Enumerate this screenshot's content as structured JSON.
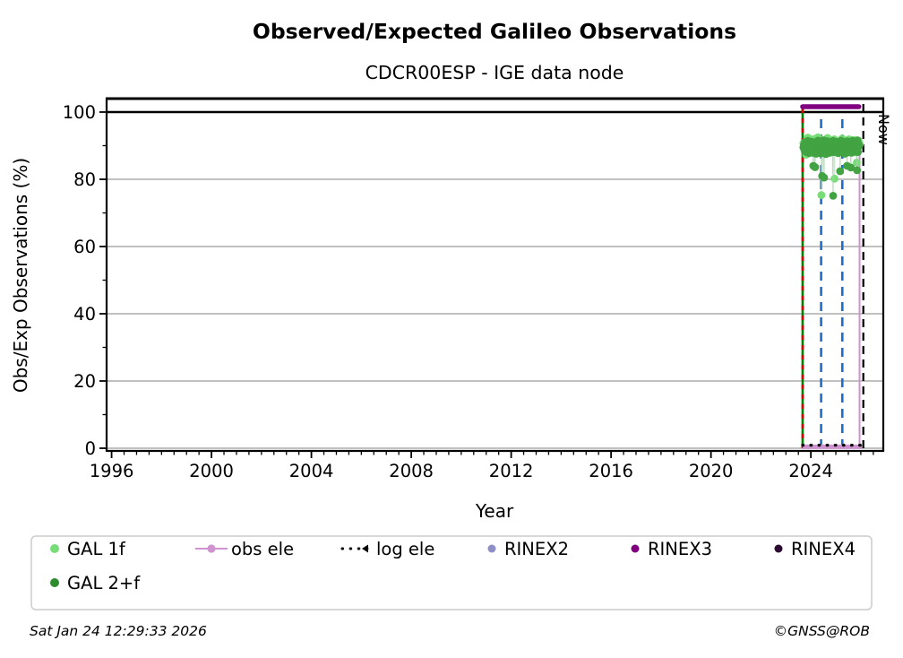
{
  "title": "Observed/Expected Galileo Observations",
  "subtitle": "CDCR00ESP - IGE data node",
  "now_label": "Now",
  "footer": {
    "timestamp": "Sat Jan 24 12:29:33 2026",
    "credit": "©GNSS@ROB"
  },
  "colors": {
    "gal1f": "#77dd77",
    "gal1f_line": "#bfe9bf",
    "gal2f": "#41a341",
    "gal2f_legend": "#2e8b2e",
    "gal2f_line": "#a3d6a8",
    "obs_ele": "#cf94cf",
    "log_ele": "#000000",
    "rinex2": "#8e8ec8",
    "rinex3": "#800080",
    "rinex4": "#2d0a32",
    "event_blue": "#1e6ec8",
    "data_start_green": "#008000",
    "data_start_red": "#e00000",
    "grid_gray": "#b8b8b8",
    "hline100": "#000000"
  },
  "chart_data": {
    "type": "scatter",
    "title": "Observed/Expected Galileo Observations",
    "subtitle": "CDCR00ESP - IGE data node",
    "xlabel": "Year",
    "ylabel": "Obs/Exp Observations (%)",
    "xlim": [
      1995.8,
      2026.9
    ],
    "ylim": [
      -0.8,
      104
    ],
    "xticks_major": [
      1996,
      2000,
      2004,
      2008,
      2012,
      2016,
      2020,
      2024
    ],
    "xtick_minor_step": 0.5,
    "yticks_major": [
      0,
      20,
      40,
      60,
      80,
      100
    ],
    "yticks_minor": [
      10,
      30,
      50,
      70,
      90
    ],
    "grid": "horizontal-major-only",
    "reference_line_100": 100,
    "legend_position": "bottom",
    "series": [
      {
        "name": "GAL 1f",
        "type": "scatter",
        "x0": 2023.7,
        "dx": 0.0225,
        "y": [
          90.7,
          89.4,
          89.9,
          90.3,
          91.1,
          87.3,
          91.8,
          88.2,
          92.4,
          88.5,
          89.0,
          90.1,
          89.6,
          91.2,
          90.4,
          87.9,
          91.6,
          89.1,
          88.6,
          92.0,
          89.4,
          90.2,
          88.6,
          88.8,
          91.5,
          88.1,
          92.5,
          88.3,
          89.2,
          89.7,
          91.0,
          88.9,
          90.4,
          89.7,
          91.3,
          88.4,
          90.8,
          89.5,
          91.1,
          89.8,
          88.7,
          89.0,
          90.2,
          92.3,
          87.8,
          91.4,
          88.7,
          89.1,
          90.2,
          90.0,
          89.6,
          90.9,
          89.3,
          90.6,
          88.4,
          91.9,
          89.6,
          91.0,
          90.3,
          89.2,
          89.7,
          90.5,
          89.0,
          90.4,
          89.9,
          91.2,
          88.8,
          90.7,
          89.4,
          92.1,
          88.3,
          89.7,
          91.5,
          90.2,
          88.8,
          91.1,
          89.8,
          90.1,
          90.5,
          88.6,
          89.2,
          91.9,
          88.4,
          90.3,
          89.8,
          91.3,
          89.1,
          90.6,
          88.2,
          91.7,
          89.5,
          90.9,
          90.4,
          88.0,
          91.2,
          88.7,
          90.8,
          89.3,
          91.5,
          90.9
        ],
        "extra_points": [
          [
            2024.42,
            75.3
          ],
          [
            2024.95,
            80.2
          ],
          [
            2025.84,
            85.0
          ]
        ]
      },
      {
        "name": "GAL 2+f",
        "type": "scatter",
        "x0": 2023.7,
        "dx": 0.0225,
        "y": [
          89.5,
          90.2,
          88.7,
          91.1,
          89.9,
          88.1,
          90.6,
          89.0,
          91.4,
          89.3,
          87.8,
          90.9,
          88.4,
          90.0,
          91.2,
          88.8,
          90.4,
          87.9,
          89.6,
          90.8,
          88.2,
          91.0,
          89.4,
          87.6,
          90.3,
          88.9,
          91.5,
          89.1,
          88.0,
          90.5,
          89.8,
          87.7,
          91.2,
          88.5,
          90.1,
          89.2,
          91.6,
          88.3,
          89.9,
          90.6,
          87.5,
          90.8,
          89.0,
          91.3,
          88.6,
          90.2,
          89.5,
          87.9,
          91.0,
          88.8,
          90.4,
          89.7,
          88.1,
          91.4,
          89.2,
          90.7,
          88.4,
          89.8,
          91.1,
          88.0,
          90.5,
          89.3,
          87.8,
          91.2,
          88.7,
          90.0,
          89.6,
          91.5,
          88.2,
          90.9,
          89.1,
          88.5,
          90.3,
          91.0,
          87.6,
          89.9,
          90.6,
          88.9,
          91.3,
          89.4,
          88.0,
          90.7,
          89.2,
          91.1,
          88.6,
          90.2,
          87.9,
          91.4,
          89.0,
          90.5,
          88.3,
          89.7,
          91.2,
          88.8,
          90.0,
          89.5,
          91.6,
          88.1,
          90.4,
          89.9
        ],
        "extra_points": [
          [
            2024.1,
            84.0
          ],
          [
            2024.17,
            83.6
          ],
          [
            2024.45,
            81.0
          ],
          [
            2024.53,
            80.5
          ],
          [
            2024.89,
            75.1
          ],
          [
            2025.17,
            82.4
          ],
          [
            2025.45,
            84.0
          ],
          [
            2025.6,
            83.5
          ],
          [
            2025.85,
            82.7
          ]
        ]
      },
      {
        "name": "obs ele",
        "type": "line",
        "baseline": [
          [
            2023.67,
            0.45
          ],
          [
            2026.05,
            0.45
          ]
        ],
        "spike": [
          [
            2025.95,
            0.45
          ],
          [
            2025.95,
            90.4
          ]
        ],
        "marker_point": [
          2025.95,
          90.4
        ]
      },
      {
        "name": "log ele",
        "type": "dotted-line",
        "points": [
          [
            2023.67,
            0.9
          ],
          [
            2026.05,
            0.9
          ]
        ]
      },
      {
        "name": "RINEX3",
        "type": "thick-line",
        "points": [
          [
            2023.67,
            101.6
          ],
          [
            2025.92,
            101.6
          ]
        ]
      }
    ],
    "vlines": [
      {
        "name": "data-start",
        "x": 2023.67,
        "y0": 0,
        "y1": 101.6,
        "style": "green-red-dashed"
      },
      {
        "name": "event-1",
        "x": 2024.41,
        "y0": 0,
        "y1": 99,
        "style": "blue-dashed"
      },
      {
        "name": "event-2",
        "x": 2025.26,
        "y0": 0,
        "y1": 99,
        "style": "blue-dashed"
      },
      {
        "name": "now",
        "x": 2026.1,
        "y0": 0,
        "y1": 104,
        "style": "black-dashed",
        "label": "Now"
      }
    ],
    "legend": [
      {
        "label": "GAL 1f",
        "marker": "dot",
        "color_key": "gal1f",
        "row": 0,
        "col": 0
      },
      {
        "label": "GAL 2+f",
        "marker": "dot",
        "color_key": "gal2f_legend",
        "row": 1,
        "col": 0
      },
      {
        "label": "obs ele",
        "marker": "line-dot",
        "color_key": "obs_ele",
        "row": 0,
        "col": 1
      },
      {
        "label": "log ele",
        "marker": "dotted-line",
        "color_key": "log_ele",
        "row": 0,
        "col": 2
      },
      {
        "label": "RINEX2",
        "marker": "dot",
        "color_key": "rinex2",
        "row": 0,
        "col": 3
      },
      {
        "label": "RINEX3",
        "marker": "dot",
        "color_key": "rinex3",
        "row": 0,
        "col": 4
      },
      {
        "label": "RINEX4",
        "marker": "dot",
        "color_key": "rinex4",
        "row": 0,
        "col": 5
      }
    ]
  }
}
